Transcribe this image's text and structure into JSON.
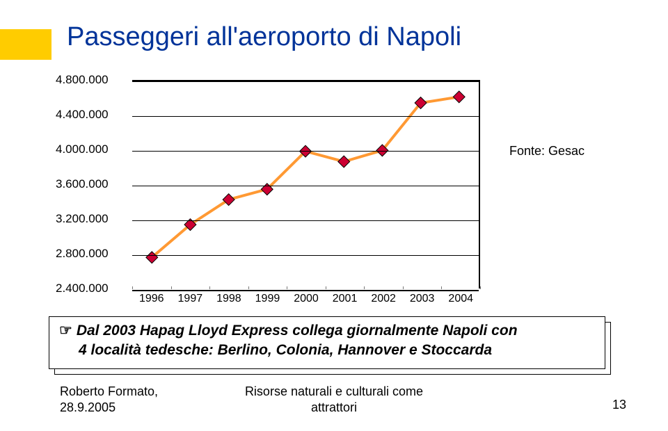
{
  "title": "Passeggeri all'aeroporto di Napoli",
  "accent_color": "#ffcc00",
  "title_color": "#003399",
  "chart": {
    "type": "line",
    "ylim": [
      2400000,
      4800000
    ],
    "ytick_step": 400000,
    "yticks": [
      2400000,
      2800000,
      3200000,
      3600000,
      4000000,
      4400000,
      4800000
    ],
    "ytick_labels": [
      "2.400.000",
      "2.800.000",
      "3.200.000",
      "3.600.000",
      "4.000.000",
      "4.400.000",
      "4.800.000"
    ],
    "categories": [
      "1996",
      "1997",
      "1998",
      "1999",
      "2000",
      "2001",
      "2002",
      "2003",
      "2004"
    ],
    "values": [
      2760000,
      3140000,
      3430000,
      3550000,
      3990000,
      3870000,
      4000000,
      4550000,
      4620000
    ],
    "line_color": "#ff9933",
    "line_width": 4,
    "marker_fill": "#cc0033",
    "marker_border": "#000000",
    "marker_size": 12,
    "grid_color": "#000000",
    "background_color": "#ffffff",
    "label_fontsize": 17
  },
  "source_label": "Fonte: Gesac",
  "note": {
    "line1": "Dal 2003 Hapag Lloyd Express collega giornalmente Napoli con",
    "line2": "4 località tedesche: Berlino, Colonia, Hannover e Stoccarda",
    "hand": "☞"
  },
  "footer": {
    "author": "Roberto Formato,",
    "date": "28.9.2005",
    "center1": "Risorse naturali e culturali come",
    "center2": "attrattori",
    "page": "13"
  }
}
